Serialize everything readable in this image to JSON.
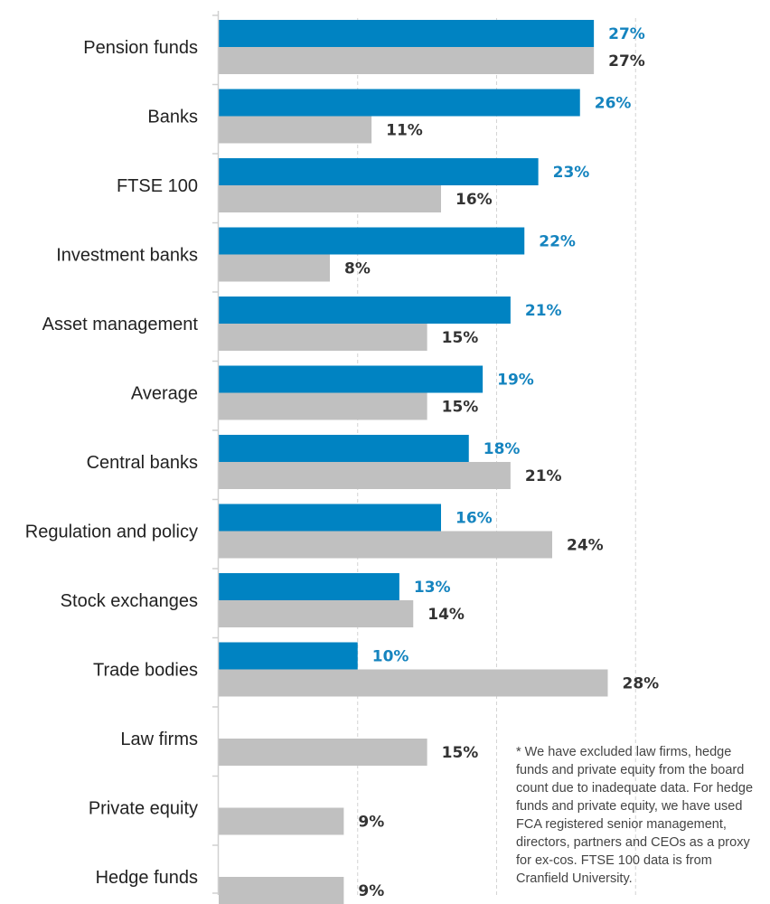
{
  "chart_data": {
    "type": "bar",
    "orientation": "horizontal",
    "categories": [
      "Pension funds",
      "Banks",
      "FTSE 100",
      "Investment banks",
      "Asset management",
      "Average",
      "Central banks",
      "Regulation and policy",
      "Stock exchanges",
      "Trade bodies",
      "Law firms",
      "Private equity",
      "Hedge funds"
    ],
    "series": [
      {
        "color": "#0083c2",
        "label_color": "#1584bf",
        "values": [
          27,
          26,
          23,
          22,
          21,
          19,
          18,
          16,
          13,
          10,
          null,
          null,
          null
        ]
      },
      {
        "color": "#c0c0c0",
        "label_color": "#333333",
        "values": [
          27,
          11,
          16,
          8,
          15,
          15,
          21,
          24,
          14,
          28,
          15,
          9,
          9
        ]
      }
    ],
    "value_suffix": "%",
    "xlim": [
      0,
      40
    ],
    "grid": "vertical dashed",
    "legend": "none"
  },
  "footnote": "* We have excluded law firms, hedge funds and private equity from the board count due to inadequate data. For hedge funds and private equity, we have used FCA registered senior management, directors, partners and CEOs as a proxy for ex-cos. FTSE 100 data is from Cranfield University."
}
